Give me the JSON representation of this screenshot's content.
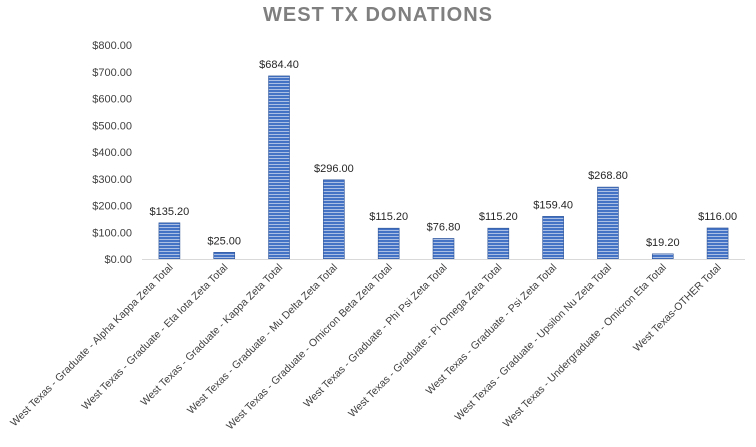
{
  "chart_data": {
    "type": "bar",
    "title": "WEST TX DONATIONS",
    "xlabel": "",
    "ylabel": "",
    "ylim": [
      0,
      800
    ],
    "yticks": [
      "$0.00",
      "$100.00",
      "$200.00",
      "$300.00",
      "$400.00",
      "$500.00",
      "$600.00",
      "$700.00",
      "$800.00"
    ],
    "grid": false,
    "legend": "none",
    "bar_color": "#4472c4",
    "categories": [
      "West Texas - Graduate - Alpha Kappa Zeta Total",
      "West Texas - Graduate - Eta Iota Zeta Total",
      "West Texas - Graduate - Kappa Zeta Total",
      "West Texas - Graduate - Mu Delta Zeta Total",
      "West Texas - Graduate - Omicron Beta Zeta Total",
      "West Texas - Graduate - Phi Psi Zeta Total",
      "West Texas - Graduate - Pi Omega Zeta Total",
      "West Texas - Graduate - Psi Zeta Total",
      "West Texas - Graduate - Upsilon Nu Zeta Total",
      "West Texas - Undergraduate - Omicron Eta Total",
      "West Texas-OTHER Total"
    ],
    "values": [
      135.2,
      25.0,
      684.4,
      296.0,
      115.2,
      76.8,
      115.2,
      159.4,
      268.8,
      19.2,
      116.0
    ],
    "data_labels": [
      "$135.20",
      "$25.00",
      "$684.40",
      "$296.00",
      "$115.20",
      "$76.80",
      "$115.20",
      "$159.40",
      "$268.80",
      "$19.20",
      "$116.00"
    ]
  }
}
